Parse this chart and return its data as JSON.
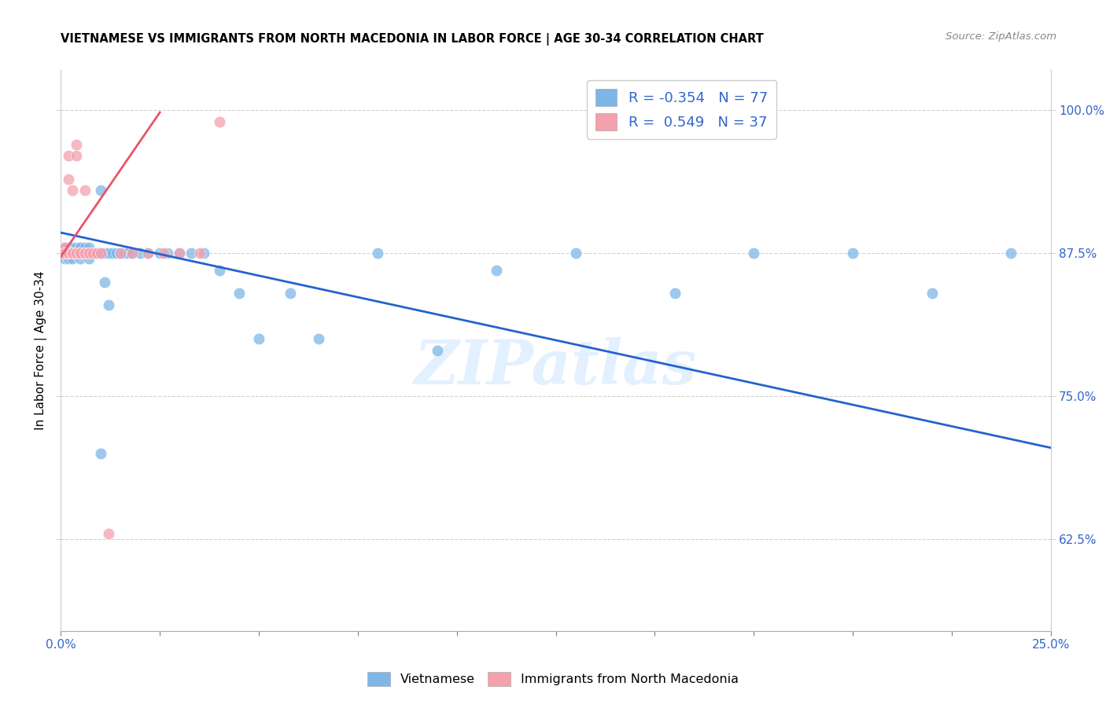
{
  "title": "VIETNAMESE VS IMMIGRANTS FROM NORTH MACEDONIA IN LABOR FORCE | AGE 30-34 CORRELATION CHART",
  "source": "Source: ZipAtlas.com",
  "ylabel": "In Labor Force | Age 30-34",
  "xlim": [
    0.0,
    0.25
  ],
  "ylim": [
    0.545,
    1.035
  ],
  "xticks_major": [
    0.0,
    0.025,
    0.05,
    0.075,
    0.1,
    0.125,
    0.15,
    0.175,
    0.2,
    0.225,
    0.25
  ],
  "xticks_label_positions": [
    0.0,
    0.25
  ],
  "xticklabels": [
    "0.0%",
    "25.0%"
  ],
  "yticks": [
    0.625,
    0.75,
    0.875,
    1.0
  ],
  "yticklabels": [
    "62.5%",
    "75.0%",
    "87.5%",
    "100.0%"
  ],
  "blue_color": "#7EB6E8",
  "pink_color": "#F4A0AD",
  "trend_blue": "#2563CC",
  "trend_pink": "#E8556A",
  "legend_r_blue": "-0.354",
  "legend_n_blue": "77",
  "legend_r_pink": "0.549",
  "legend_n_pink": "37",
  "watermark": "ZIPatlas",
  "legend_label_blue": "Vietnamese",
  "legend_label_pink": "Immigrants from North Macedonia",
  "blue_scatter_x": [
    0.001,
    0.001,
    0.001,
    0.001,
    0.001,
    0.002,
    0.002,
    0.002,
    0.002,
    0.002,
    0.002,
    0.002,
    0.003,
    0.003,
    0.003,
    0.003,
    0.003,
    0.003,
    0.004,
    0.004,
    0.004,
    0.004,
    0.004,
    0.005,
    0.005,
    0.005,
    0.005,
    0.005,
    0.005,
    0.006,
    0.006,
    0.006,
    0.006,
    0.007,
    0.007,
    0.007,
    0.007,
    0.008,
    0.008,
    0.008,
    0.008,
    0.009,
    0.009,
    0.01,
    0.01,
    0.011,
    0.011,
    0.012,
    0.012,
    0.013,
    0.014,
    0.015,
    0.016,
    0.017,
    0.018,
    0.02,
    0.022,
    0.025,
    0.027,
    0.03,
    0.033,
    0.036,
    0.04,
    0.045,
    0.05,
    0.058,
    0.065,
    0.08,
    0.095,
    0.11,
    0.13,
    0.155,
    0.175,
    0.2,
    0.22,
    0.24,
    0.01
  ],
  "blue_scatter_y": [
    0.875,
    0.88,
    0.875,
    0.87,
    0.875,
    0.875,
    0.875,
    0.88,
    0.875,
    0.87,
    0.875,
    0.875,
    0.875,
    0.875,
    0.875,
    0.88,
    0.87,
    0.875,
    0.875,
    0.875,
    0.875,
    0.88,
    0.875,
    0.88,
    0.875,
    0.875,
    0.875,
    0.88,
    0.87,
    0.875,
    0.875,
    0.875,
    0.88,
    0.875,
    0.875,
    0.88,
    0.87,
    0.875,
    0.875,
    0.875,
    0.875,
    0.875,
    0.875,
    0.93,
    0.875,
    0.85,
    0.875,
    0.875,
    0.83,
    0.875,
    0.875,
    0.875,
    0.875,
    0.875,
    0.875,
    0.875,
    0.875,
    0.875,
    0.875,
    0.875,
    0.875,
    0.875,
    0.86,
    0.84,
    0.8,
    0.84,
    0.8,
    0.875,
    0.79,
    0.86,
    0.875,
    0.84,
    0.875,
    0.875,
    0.84,
    0.875,
    0.7
  ],
  "pink_scatter_x": [
    0.001,
    0.001,
    0.001,
    0.001,
    0.002,
    0.002,
    0.002,
    0.002,
    0.002,
    0.003,
    0.003,
    0.003,
    0.003,
    0.003,
    0.003,
    0.004,
    0.004,
    0.004,
    0.004,
    0.005,
    0.005,
    0.006,
    0.006,
    0.006,
    0.007,
    0.007,
    0.008,
    0.009,
    0.01,
    0.012,
    0.015,
    0.018,
    0.022,
    0.026,
    0.03,
    0.035,
    0.04
  ],
  "pink_scatter_y": [
    0.875,
    0.88,
    0.875,
    0.875,
    0.96,
    0.94,
    0.875,
    0.875,
    0.875,
    0.875,
    0.875,
    0.875,
    0.93,
    0.875,
    0.875,
    0.97,
    0.96,
    0.875,
    0.875,
    0.875,
    0.875,
    0.93,
    0.875,
    0.875,
    0.875,
    0.875,
    0.875,
    0.875,
    0.875,
    0.63,
    0.875,
    0.875,
    0.875,
    0.875,
    0.875,
    0.875,
    0.99
  ],
  "blue_trend_x": [
    0.0,
    0.25
  ],
  "blue_trend_y": [
    0.893,
    0.705
  ],
  "pink_trend_x": [
    0.0,
    0.025
  ],
  "pink_trend_y": [
    0.872,
    0.998
  ]
}
